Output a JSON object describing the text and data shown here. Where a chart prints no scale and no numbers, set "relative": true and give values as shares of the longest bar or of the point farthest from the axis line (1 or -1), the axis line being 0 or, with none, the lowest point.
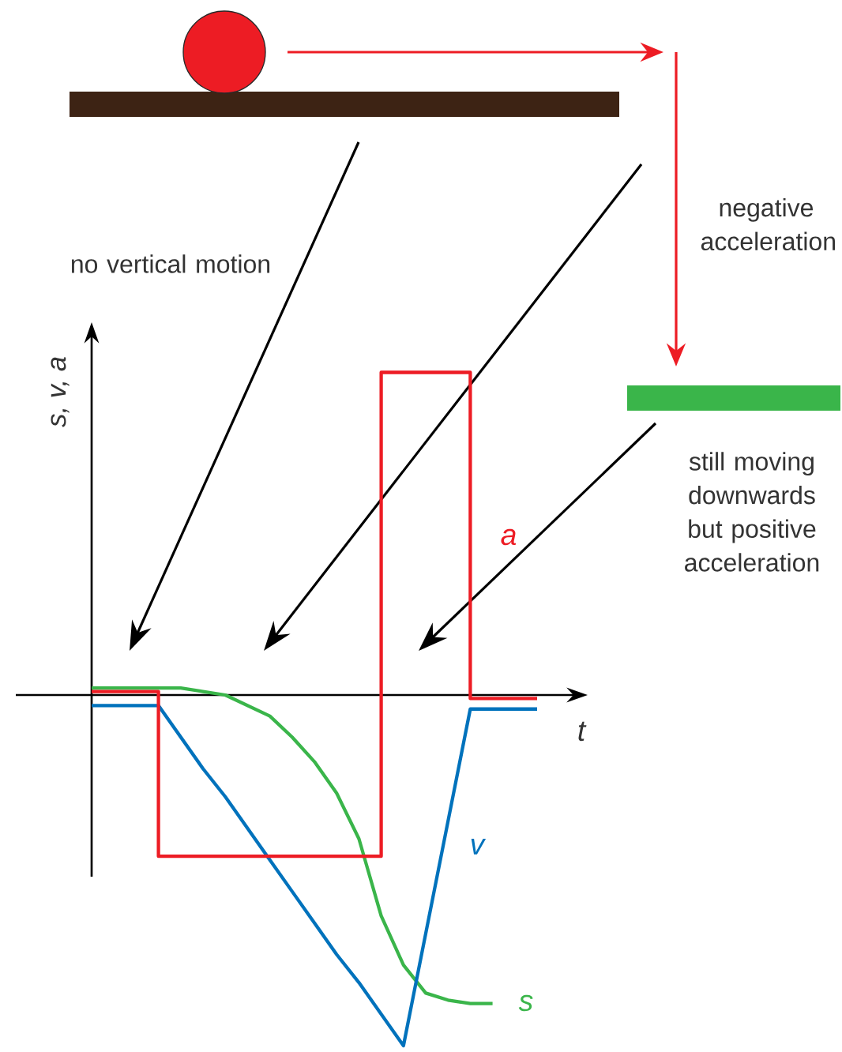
{
  "chart_data": {
    "type": "line",
    "relative": true,
    "xlabel": "t",
    "ylabel": "s, v, a",
    "categories": [
      null,
      null,
      null,
      null,
      null,
      null,
      null,
      null,
      null,
      null,
      null,
      null,
      null,
      null,
      null,
      null,
      null,
      null,
      null,
      null,
      null
    ],
    "series": [
      {
        "name": "s",
        "color": "#3ab54a",
        "values": [
          0.02,
          0.02,
          0.02,
          0.02,
          0.02,
          0.01,
          0,
          -0.03,
          -0.06,
          -0.12,
          -0.19,
          -0.28,
          -0.41,
          -0.63,
          -0.77,
          -0.85,
          -0.87,
          -0.88,
          -0.88,
          null,
          null
        ]
      },
      {
        "name": "v",
        "color": "#0072bc",
        "values": [
          -0.03,
          -0.03,
          -0.03,
          -0.03,
          -0.12,
          -0.21,
          -0.29,
          -0.38,
          -0.47,
          -0.56,
          -0.65,
          -0.74,
          -0.82,
          -0.91,
          -1,
          -0.68,
          -0.36,
          -0.04,
          -0.04,
          -0.04,
          -0.04
        ]
      },
      {
        "name": "a",
        "type": "step",
        "color": "#ed1c24",
        "values": [
          0.01,
          0.01,
          0.01,
          -0.46,
          -0.46,
          -0.46,
          -0.46,
          -0.46,
          -0.46,
          -0.46,
          -0.46,
          -0.46,
          -0.46,
          0.92,
          0.92,
          0.92,
          0.92,
          -0.01,
          -0.01,
          -0.01,
          -0.01
        ]
      }
    ],
    "annotations": [
      "no vertical motion",
      "negative acceleration",
      "still moving downwards but positive acceleration"
    ]
  }
}
